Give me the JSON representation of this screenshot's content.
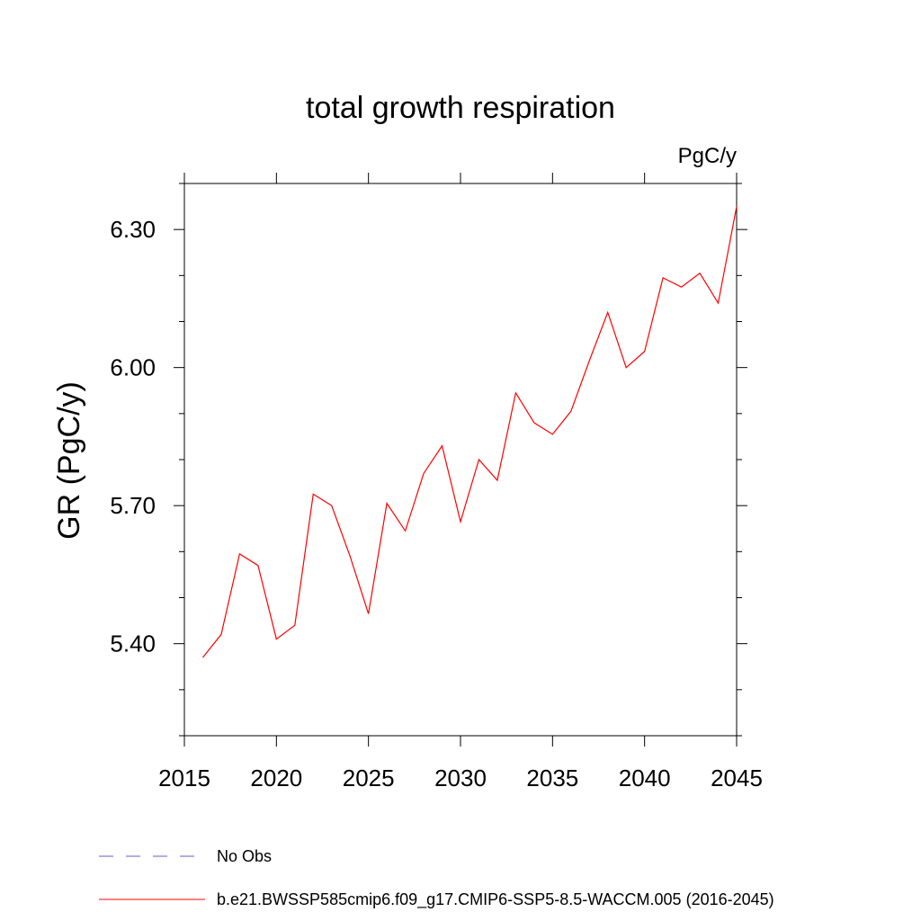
{
  "chart_data": {
    "type": "line",
    "title": "total growth respiration",
    "units_label": "PgC/y",
    "ylabel": "GR  (PgC/y)",
    "xlabel": "",
    "xlim": [
      2015,
      2045
    ],
    "ylim": [
      5.2,
      6.4
    ],
    "x_ticks": [
      2015,
      2020,
      2025,
      2030,
      2035,
      2040,
      2045
    ],
    "x_tick_labels": [
      "2015",
      "2020",
      "2025",
      "2030",
      "2035",
      "2040",
      "2045"
    ],
    "y_ticks": [
      5.4,
      5.7,
      6.0,
      6.3
    ],
    "y_tick_labels": [
      "5.40",
      "5.70",
      "6.00",
      "6.30"
    ],
    "y_minor_step": 0.1,
    "x_minor_step": 1,
    "grid": false,
    "legend_position": "bottom",
    "series": [
      {
        "name": "b.e21.BWSSP585cmip6.f09_g17.CMIP6-SSP5-8.5-WACCM.005 (2016-2045)",
        "color": "#ff0000",
        "dash": "solid",
        "x": [
          2016,
          2017,
          2018,
          2019,
          2020,
          2021,
          2022,
          2023,
          2024,
          2025,
          2026,
          2027,
          2028,
          2029,
          2030,
          2031,
          2032,
          2033,
          2034,
          2035,
          2036,
          2037,
          2038,
          2039,
          2040,
          2041,
          2042,
          2043,
          2044,
          2045
        ],
        "y": [
          5.37,
          5.42,
          5.595,
          5.57,
          5.41,
          5.44,
          5.725,
          5.7,
          5.59,
          5.465,
          5.705,
          5.645,
          5.77,
          5.83,
          5.665,
          5.8,
          5.755,
          5.945,
          5.88,
          5.855,
          5.905,
          6.015,
          6.12,
          6.0,
          6.035,
          6.195,
          6.175,
          6.205,
          6.14,
          6.35
        ]
      }
    ],
    "legend": [
      {
        "label": "No Obs",
        "color": "#6a5acd",
        "dash": "dashed"
      },
      {
        "label": "b.e21.BWSSP585cmip6.f09_g17.CMIP6-SSP5-8.5-WACCM.005 (2016-2045)",
        "color": "#ff0000",
        "dash": "solid"
      }
    ]
  }
}
